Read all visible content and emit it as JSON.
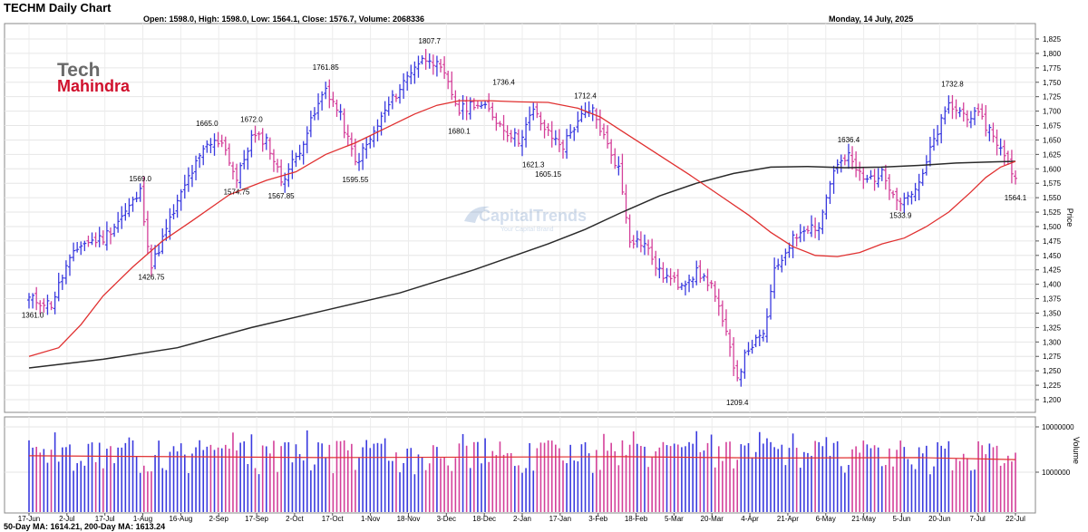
{
  "header": {
    "title": "TECHM Daily Chart",
    "ohlc": "Open: 1598.0, High: 1598.0, Low: 1564.1, Close: 1576.7, Volume: 2068336",
    "date": "Monday, 14 July, 2025"
  },
  "footer": {
    "ma_text": "50-Day MA: 1614.21, 200-Day MA: 1613.24"
  },
  "logo": {
    "line1": "Tech",
    "line2": "Mahindra"
  },
  "watermark": {
    "name": "CapitalTrends",
    "tagline": "Your Capital Brand"
  },
  "chart_data": [
    {
      "type": "candlestick",
      "title": "TECHM Daily Chart",
      "ylabel": "Price",
      "ylim": [
        1180,
        1840
      ],
      "yticks": [
        1200,
        1225,
        1250,
        1275,
        1300,
        1325,
        1350,
        1375,
        1400,
        1425,
        1450,
        1475,
        1500,
        1525,
        1550,
        1575,
        1600,
        1625,
        1650,
        1675,
        1700,
        1725,
        1750,
        1775,
        1800,
        1825
      ],
      "ytick_labels": [
        "1,200",
        "1,225",
        "1,250",
        "1,275",
        "1,300",
        "1,325",
        "1,350",
        "1,375",
        "1,400",
        "1,425",
        "1,450",
        "1,475",
        "1,500",
        "1,525",
        "1,550",
        "1,575",
        "1,600",
        "1,625",
        "1,650",
        "1,675",
        "1,700",
        "1,725",
        "1,750",
        "1,775",
        "1,800",
        "1,825"
      ],
      "xticks": [
        "17-Jun",
        "2-Jul",
        "17-Jul",
        "1-Aug",
        "16-Aug",
        "2-Sep",
        "17-Sep",
        "2-Oct",
        "17-Oct",
        "1-Nov",
        "18-Nov",
        "3-Dec",
        "18-Dec",
        "2-Jan",
        "17-Jan",
        "3-Feb",
        "18-Feb",
        "5-Mar",
        "20-Mar",
        "4-Apr",
        "21-Apr",
        "6-May",
        "21-May",
        "5-Jun",
        "20-Jun",
        "7-Jul",
        "22-Jul"
      ],
      "grid": true,
      "series": [
        {
          "name": "50-Day MA",
          "color": "#e03030"
        },
        {
          "name": "200-Day MA",
          "color": "#2a2a2a"
        }
      ],
      "key_points": [
        {
          "label": "1361.0",
          "value": 1361.0
        },
        {
          "label": "1569.0",
          "value": 1569.0
        },
        {
          "label": "1426.75",
          "value": 1426.75
        },
        {
          "label": "1665.0",
          "value": 1665.0
        },
        {
          "label": "1574.75",
          "value": 1574.75
        },
        {
          "label": "1672.0",
          "value": 1672.0
        },
        {
          "label": "1567.85",
          "value": 1567.85
        },
        {
          "label": "1761.85",
          "value": 1761.85
        },
        {
          "label": "1595.55",
          "value": 1595.55
        },
        {
          "label": "1807.7",
          "value": 1807.7
        },
        {
          "label": "1680.1",
          "value": 1680.1
        },
        {
          "label": "1736.4",
          "value": 1736.4
        },
        {
          "label": "1621.3",
          "value": 1621.3
        },
        {
          "label": "1605.15",
          "value": 1605.15
        },
        {
          "label": "1712.4",
          "value": 1712.4
        },
        {
          "label": "1209.4",
          "value": 1209.4
        },
        {
          "label": "1636.4",
          "value": 1636.4
        },
        {
          "label": "1533.9",
          "value": 1533.9
        },
        {
          "label": "1732.8",
          "value": 1732.8
        },
        {
          "label": "1564.1",
          "value": 1564.1
        }
      ],
      "up_color": "#3a3adf",
      "down_color": "#d4409a"
    },
    {
      "type": "bar",
      "ylabel": "Volume",
      "yscale": "log",
      "yticks": [
        1000000,
        10000000
      ],
      "ytick_labels": [
        "1000000",
        "10000000"
      ],
      "series": [
        {
          "name": "Volume",
          "up_color": "#3a3adf",
          "down_color": "#d4409a"
        },
        {
          "name": "Volume MA",
          "color": "#e03030"
        }
      ]
    }
  ]
}
